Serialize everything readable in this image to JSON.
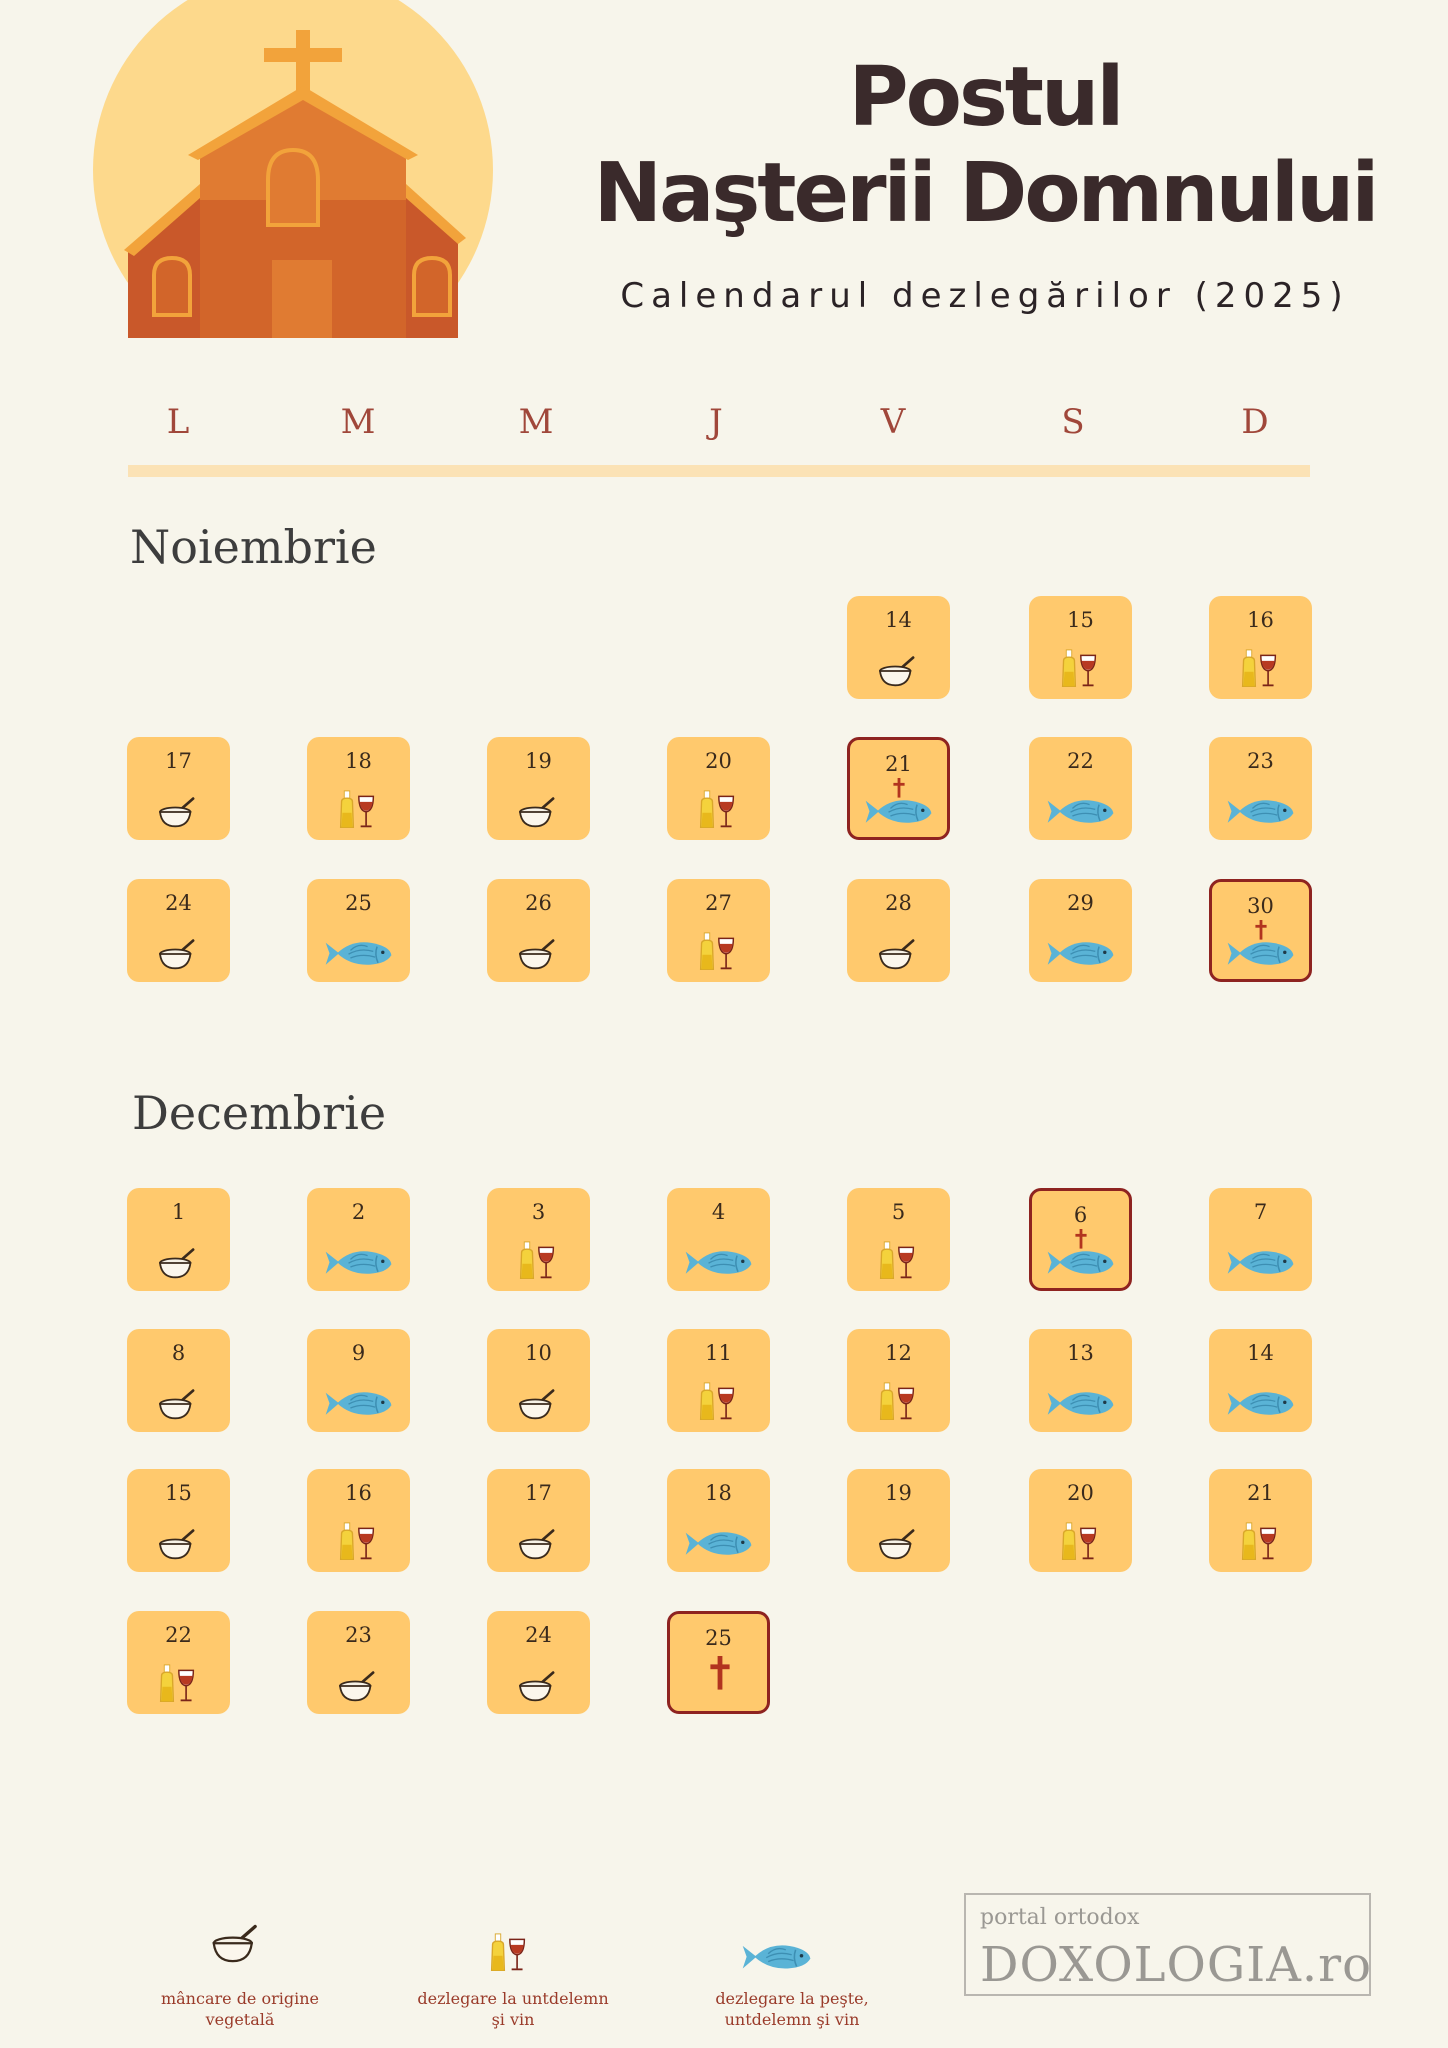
{
  "header": {
    "title_line1": "Postul",
    "title_line2": "Naşterii Domnului",
    "subtitle": "Calendarul dezlegărilor (2025)"
  },
  "weekdays": [
    "L",
    "M",
    "M",
    "J",
    "V",
    "S",
    "D"
  ],
  "icons": {
    "vegetal": "bowl-icon",
    "oil_wine": "oil-wine-icon",
    "fish": "fish-icon",
    "feast": "cross-icon"
  },
  "colors": {
    "cell": "#ffc96d",
    "feast_border": "#8e2320",
    "fish": "#5ab3d6",
    "weekday": "#a0473a",
    "legend_text": "#9a3b2a"
  },
  "months": [
    {
      "name": "Noiembrie",
      "days": [
        {
          "day": "14",
          "col": 4,
          "row": 0,
          "type": "vegetal"
        },
        {
          "day": "15",
          "col": 5,
          "row": 0,
          "type": "oil_wine"
        },
        {
          "day": "16",
          "col": 6,
          "row": 0,
          "type": "oil_wine"
        },
        {
          "day": "17",
          "col": 0,
          "row": 1,
          "type": "vegetal"
        },
        {
          "day": "18",
          "col": 1,
          "row": 1,
          "type": "oil_wine"
        },
        {
          "day": "19",
          "col": 2,
          "row": 1,
          "type": "vegetal"
        },
        {
          "day": "20",
          "col": 3,
          "row": 1,
          "type": "oil_wine"
        },
        {
          "day": "21",
          "col": 4,
          "row": 1,
          "type": "fish",
          "feast": true
        },
        {
          "day": "22",
          "col": 5,
          "row": 1,
          "type": "fish"
        },
        {
          "day": "23",
          "col": 6,
          "row": 1,
          "type": "fish"
        },
        {
          "day": "24",
          "col": 0,
          "row": 2,
          "type": "vegetal"
        },
        {
          "day": "25",
          "col": 1,
          "row": 2,
          "type": "fish"
        },
        {
          "day": "26",
          "col": 2,
          "row": 2,
          "type": "vegetal"
        },
        {
          "day": "27",
          "col": 3,
          "row": 2,
          "type": "oil_wine"
        },
        {
          "day": "28",
          "col": 4,
          "row": 2,
          "type": "vegetal"
        },
        {
          "day": "29",
          "col": 5,
          "row": 2,
          "type": "fish"
        },
        {
          "day": "30",
          "col": 6,
          "row": 2,
          "type": "fish",
          "feast": true
        }
      ]
    },
    {
      "name": "Decembrie",
      "days": [
        {
          "day": "1",
          "col": 0,
          "row": 0,
          "type": "vegetal"
        },
        {
          "day": "2",
          "col": 1,
          "row": 0,
          "type": "fish"
        },
        {
          "day": "3",
          "col": 2,
          "row": 0,
          "type": "oil_wine"
        },
        {
          "day": "4",
          "col": 3,
          "row": 0,
          "type": "fish"
        },
        {
          "day": "5",
          "col": 4,
          "row": 0,
          "type": "oil_wine"
        },
        {
          "day": "6",
          "col": 5,
          "row": 0,
          "type": "fish",
          "feast": true
        },
        {
          "day": "7",
          "col": 6,
          "row": 0,
          "type": "fish"
        },
        {
          "day": "8",
          "col": 0,
          "row": 1,
          "type": "vegetal"
        },
        {
          "day": "9",
          "col": 1,
          "row": 1,
          "type": "fish"
        },
        {
          "day": "10",
          "col": 2,
          "row": 1,
          "type": "vegetal"
        },
        {
          "day": "11",
          "col": 3,
          "row": 1,
          "type": "oil_wine"
        },
        {
          "day": "12",
          "col": 4,
          "row": 1,
          "type": "oil_wine"
        },
        {
          "day": "13",
          "col": 5,
          "row": 1,
          "type": "fish"
        },
        {
          "day": "14",
          "col": 6,
          "row": 1,
          "type": "fish"
        },
        {
          "day": "15",
          "col": 0,
          "row": 2,
          "type": "vegetal"
        },
        {
          "day": "16",
          "col": 1,
          "row": 2,
          "type": "oil_wine"
        },
        {
          "day": "17",
          "col": 2,
          "row": 2,
          "type": "vegetal"
        },
        {
          "day": "18",
          "col": 3,
          "row": 2,
          "type": "fish"
        },
        {
          "day": "19",
          "col": 4,
          "row": 2,
          "type": "vegetal"
        },
        {
          "day": "20",
          "col": 5,
          "row": 2,
          "type": "oil_wine"
        },
        {
          "day": "21",
          "col": 6,
          "row": 2,
          "type": "oil_wine"
        },
        {
          "day": "22",
          "col": 0,
          "row": 3,
          "type": "oil_wine"
        },
        {
          "day": "23",
          "col": 1,
          "row": 3,
          "type": "vegetal"
        },
        {
          "day": "24",
          "col": 2,
          "row": 3,
          "type": "vegetal"
        },
        {
          "day": "25",
          "col": 3,
          "row": 3,
          "type": "feast_only",
          "feast": true
        }
      ]
    }
  ],
  "legend": [
    {
      "type": "vegetal",
      "line1": "mâncare de origine",
      "line2": "vegetală"
    },
    {
      "type": "oil_wine",
      "line1": "dezlegare la untdelemn",
      "line2": "şi vin"
    },
    {
      "type": "fish",
      "line1": "dezlegare la peşte,",
      "line2": "untdelemn şi vin"
    }
  ],
  "brand": {
    "top": "portal ortodox",
    "main": "DOXOLOGIA.ro"
  }
}
